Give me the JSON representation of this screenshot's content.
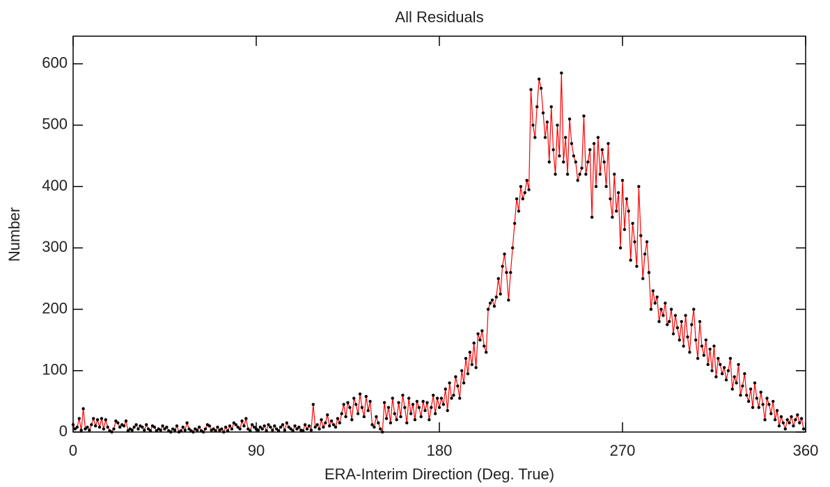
{
  "chart_data": {
    "type": "line",
    "title": "All Residuals",
    "xlabel": "ERA-Interim Direction (Deg. True)",
    "ylabel": "Number",
    "line_color": "#ff0000",
    "marker_color": "#000000",
    "xlim": [
      0,
      360
    ],
    "xticks": [
      0,
      90,
      180,
      270,
      360
    ],
    "ylim": [
      0,
      645
    ],
    "yticks": [
      0,
      100,
      200,
      300,
      400,
      500,
      600
    ],
    "x": [
      0,
      1,
      2,
      3,
      4,
      5,
      6,
      7,
      8,
      9,
      10,
      11,
      12,
      13,
      14,
      15,
      16,
      17,
      18,
      19,
      20,
      21,
      22,
      23,
      24,
      25,
      26,
      27,
      28,
      29,
      30,
      31,
      32,
      33,
      34,
      35,
      36,
      37,
      38,
      39,
      40,
      41,
      42,
      43,
      44,
      45,
      46,
      47,
      48,
      49,
      50,
      51,
      52,
      53,
      54,
      55,
      56,
      57,
      58,
      59,
      60,
      61,
      62,
      63,
      64,
      65,
      66,
      67,
      68,
      69,
      70,
      71,
      72,
      73,
      74,
      75,
      76,
      77,
      78,
      79,
      80,
      81,
      82,
      83,
      84,
      85,
      86,
      87,
      88,
      89,
      90,
      91,
      92,
      93,
      94,
      95,
      96,
      97,
      98,
      99,
      100,
      101,
      102,
      103,
      104,
      105,
      106,
      107,
      108,
      109,
      110,
      111,
      112,
      113,
      114,
      115,
      116,
      117,
      118,
      119,
      120,
      121,
      122,
      123,
      124,
      125,
      126,
      127,
      128,
      129,
      130,
      131,
      132,
      133,
      134,
      135,
      136,
      137,
      138,
      139,
      140,
      141,
      142,
      143,
      144,
      145,
      146,
      147,
      148,
      149,
      150,
      151,
      152,
      153,
      154,
      155,
      156,
      157,
      158,
      159,
      160,
      161,
      162,
      163,
      164,
      165,
      166,
      167,
      168,
      169,
      170,
      171,
      172,
      173,
      174,
      175,
      176,
      177,
      178,
      179,
      180,
      181,
      182,
      183,
      184,
      185,
      186,
      187,
      188,
      189,
      190,
      191,
      192,
      193,
      194,
      195,
      196,
      197,
      198,
      199,
      200,
      201,
      202,
      203,
      204,
      205,
      206,
      207,
      208,
      209,
      210,
      211,
      212,
      213,
      214,
      215,
      216,
      217,
      218,
      219,
      220,
      221,
      222,
      223,
      224,
      225,
      226,
      227,
      228,
      229,
      230,
      231,
      232,
      233,
      234,
      235,
      236,
      237,
      238,
      239,
      240,
      241,
      242,
      243,
      244,
      245,
      246,
      247,
      248,
      249,
      250,
      251,
      252,
      253,
      254,
      255,
      256,
      257,
      258,
      259,
      260,
      261,
      262,
      263,
      264,
      265,
      266,
      267,
      268,
      269,
      270,
      271,
      272,
      273,
      274,
      275,
      276,
      277,
      278,
      279,
      280,
      281,
      282,
      283,
      284,
      285,
      286,
      287,
      288,
      289,
      290,
      291,
      292,
      293,
      294,
      295,
      296,
      297,
      298,
      299,
      300,
      301,
      302,
      303,
      304,
      305,
      306,
      307,
      308,
      309,
      310,
      311,
      312,
      313,
      314,
      315,
      316,
      317,
      318,
      319,
      320,
      321,
      322,
      323,
      324,
      325,
      326,
      327,
      328,
      329,
      330,
      331,
      332,
      333,
      334,
      335,
      336,
      337,
      338,
      339,
      340,
      341,
      342,
      343,
      344,
      345,
      346,
      347,
      348,
      349,
      350,
      351,
      352,
      353,
      354,
      355,
      356,
      357,
      358,
      359
    ],
    "values": [
      12,
      5,
      8,
      22,
      3,
      38,
      5,
      8,
      3,
      12,
      22,
      10,
      20,
      8,
      22,
      5,
      20,
      8,
      2,
      0,
      5,
      18,
      15,
      8,
      12,
      10,
      18,
      2,
      5,
      3,
      8,
      12,
      5,
      10,
      8,
      3,
      12,
      5,
      2,
      10,
      8,
      2,
      5,
      3,
      10,
      5,
      8,
      2,
      0,
      5,
      3,
      10,
      0,
      2,
      8,
      3,
      15,
      5,
      2,
      0,
      5,
      3,
      8,
      2,
      0,
      5,
      12,
      10,
      3,
      5,
      2,
      8,
      3,
      5,
      0,
      8,
      2,
      10,
      5,
      15,
      12,
      8,
      5,
      18,
      10,
      22,
      5,
      2,
      12,
      8,
      5,
      3,
      8,
      5,
      10,
      2,
      12,
      8,
      3,
      10,
      5,
      2,
      8,
      12,
      3,
      15,
      8,
      5,
      2,
      10,
      5,
      8,
      3,
      2,
      12,
      5,
      10,
      3,
      45,
      8,
      12,
      5,
      20,
      8,
      15,
      28,
      10,
      18,
      12,
      8,
      22,
      15,
      30,
      45,
      25,
      48,
      40,
      20,
      55,
      45,
      30,
      62,
      40,
      25,
      58,
      35,
      50,
      12,
      8,
      25,
      15,
      5,
      0,
      48,
      22,
      40,
      15,
      55,
      30,
      20,
      48,
      25,
      60,
      40,
      15,
      55,
      30,
      45,
      20,
      50,
      40,
      25,
      50,
      35,
      48,
      20,
      40,
      60,
      30,
      55,
      40,
      55,
      45,
      70,
      35,
      80,
      55,
      60,
      90,
      75,
      55,
      100,
      80,
      120,
      95,
      130,
      110,
      145,
      105,
      160,
      150,
      165,
      140,
      130,
      200,
      210,
      215,
      205,
      220,
      250,
      225,
      270,
      290,
      260,
      215,
      260,
      300,
      340,
      380,
      360,
      400,
      380,
      390,
      410,
      395,
      558,
      500,
      480,
      530,
      575,
      560,
      520,
      480,
      505,
      440,
      530,
      460,
      420,
      500,
      450,
      585,
      440,
      480,
      420,
      510,
      470,
      450,
      440,
      410,
      420,
      430,
      515,
      420,
      440,
      460,
      350,
      470,
      400,
      480,
      420,
      460,
      440,
      400,
      470,
      380,
      350,
      420,
      360,
      390,
      300,
      410,
      330,
      380,
      360,
      280,
      340,
      310,
      270,
      400,
      320,
      250,
      290,
      310,
      260,
      200,
      230,
      210,
      220,
      180,
      200,
      190,
      210,
      175,
      180,
      200,
      160,
      190,
      170,
      150,
      180,
      140,
      190,
      155,
      130,
      175,
      200,
      150,
      120,
      180,
      140,
      125,
      150,
      110,
      135,
      100,
      140,
      90,
      120,
      110,
      95,
      105,
      85,
      100,
      120,
      70,
      90,
      80,
      110,
      60,
      75,
      95,
      60,
      50,
      70,
      40,
      80,
      55,
      40,
      65,
      45,
      20,
      55,
      45,
      30,
      50,
      20,
      35,
      10,
      25,
      15,
      5,
      20,
      15,
      25,
      10,
      20,
      28,
      15,
      22,
      5
    ]
  }
}
